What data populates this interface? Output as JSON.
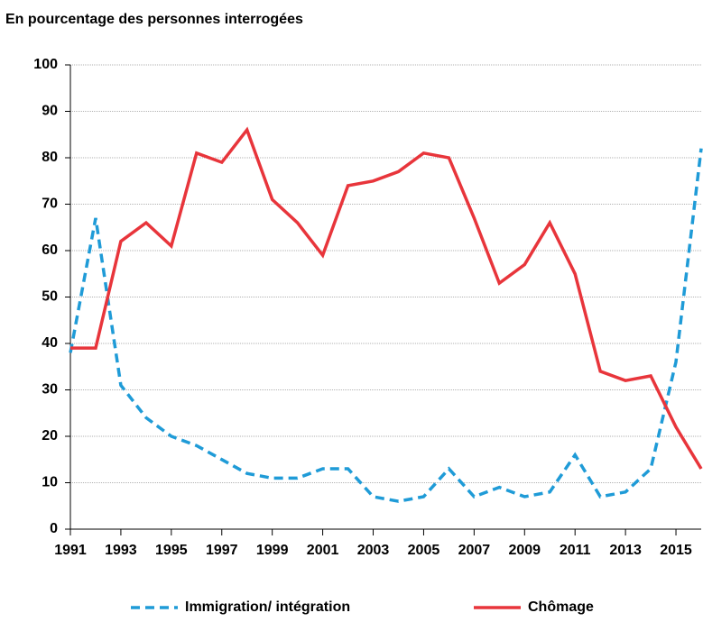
{
  "chart_data": {
    "type": "line",
    "title": "En pourcentage des personnes interrogées",
    "x": [
      1991,
      1992,
      1993,
      1994,
      1995,
      1996,
      1997,
      1998,
      1999,
      2000,
      2001,
      2002,
      2003,
      2004,
      2005,
      2006,
      2007,
      2008,
      2009,
      2010,
      2011,
      2012,
      2013,
      2014,
      2015,
      2016
    ],
    "series": [
      {
        "name": "Immigration/ intégration",
        "color": "#1f9bd7",
        "dash": true,
        "values": [
          38,
          67,
          31,
          24,
          20,
          18,
          15,
          12,
          11,
          11,
          13,
          13,
          7,
          6,
          7,
          13,
          7,
          9,
          7,
          8,
          16,
          7,
          8,
          13,
          36,
          82
        ]
      },
      {
        "name": "Chômage",
        "color": "#e8353b",
        "dash": false,
        "values": [
          39,
          39,
          62,
          66,
          61,
          81,
          79,
          86,
          71,
          66,
          59,
          74,
          75,
          77,
          81,
          80,
          67,
          53,
          57,
          66,
          55,
          34,
          32,
          33,
          22,
          13
        ]
      }
    ],
    "xlim": [
      1991,
      2016
    ],
    "xticks": [
      1991,
      1993,
      1995,
      1997,
      1999,
      2001,
      2003,
      2005,
      2007,
      2009,
      2011,
      2013,
      2015
    ],
    "ylim": [
      0,
      100
    ],
    "yticks": [
      0,
      10,
      20,
      30,
      40,
      50,
      60,
      70,
      80,
      90,
      100
    ],
    "grid": true
  }
}
